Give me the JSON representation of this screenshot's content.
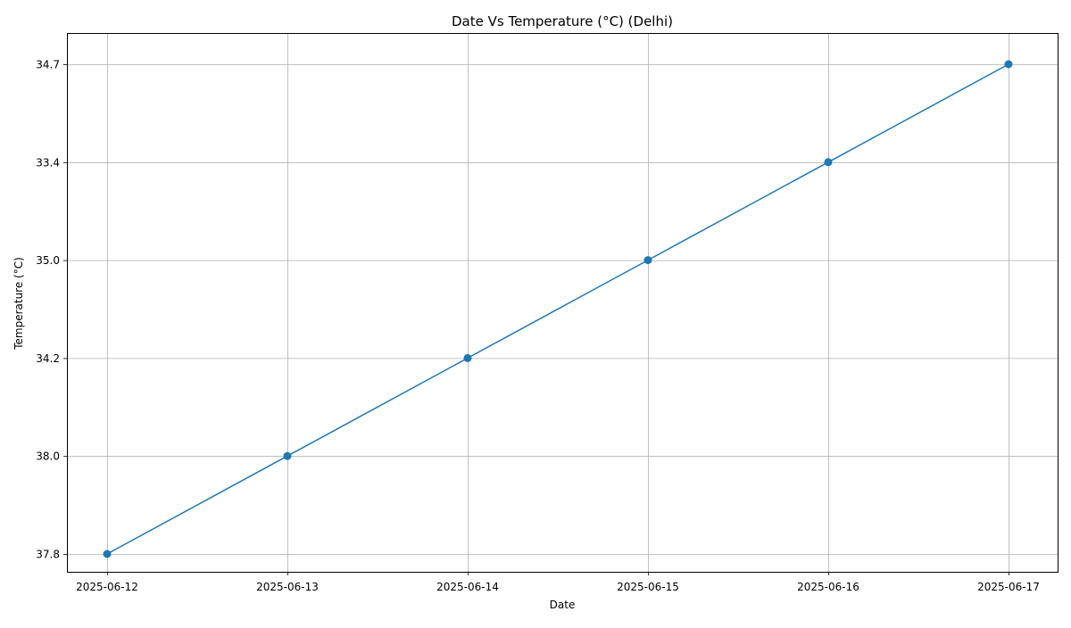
{
  "chart_data": {
    "type": "line",
    "title": "Date Vs Temperature (°C) (Delhi)",
    "xlabel": "Date",
    "ylabel": "Temperature (°C)",
    "x": [
      "2025-06-12",
      "2025-06-13",
      "2025-06-14",
      "2025-06-15",
      "2025-06-16",
      "2025-06-17"
    ],
    "y_categories": [
      "37.8",
      "38.0",
      "34.2",
      "35.0",
      "33.4",
      "34.7"
    ],
    "series": [
      {
        "values": [
          "37.8",
          "38.0",
          "34.2",
          "35.0",
          "33.4",
          "34.7"
        ],
        "color": "#1f77b4",
        "marker": "circle"
      }
    ],
    "grid": true,
    "legend": "none"
  }
}
